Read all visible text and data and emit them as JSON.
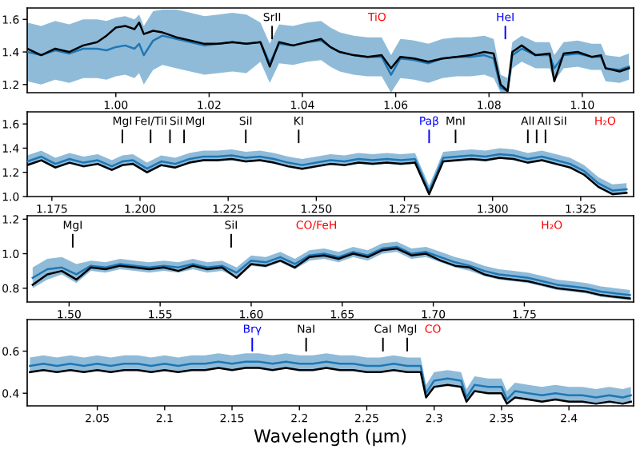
{
  "chart_data": [
    {
      "type": "line",
      "xlim": [
        0.981,
        1.111
      ],
      "ylim": [
        1.15,
        1.67
      ],
      "xticks": [
        {
          "value": 1.0,
          "label": "1.00"
        },
        {
          "value": 1.02,
          "label": "1.02"
        },
        {
          "value": 1.04,
          "label": "1.04"
        },
        {
          "value": 1.06,
          "label": "1.06"
        },
        {
          "value": 1.08,
          "label": "1.08"
        },
        {
          "value": 1.1,
          "label": "1.10"
        }
      ],
      "yticks": [
        1.2,
        1.4,
        1.6
      ],
      "x": [
        0.981,
        0.984,
        0.987,
        0.99,
        0.993,
        0.996,
        0.998,
        1.0,
        1.002,
        1.004,
        1.005,
        1.006,
        1.008,
        1.01,
        1.013,
        1.016,
        1.019,
        1.022,
        1.025,
        1.028,
        1.031,
        1.033,
        1.035,
        1.038,
        1.041,
        1.044,
        1.046,
        1.048,
        1.051,
        1.054,
        1.057,
        1.059,
        1.061,
        1.064,
        1.067,
        1.07,
        1.073,
        1.076,
        1.079,
        1.081,
        1.0825,
        1.084,
        1.085,
        1.087,
        1.09,
        1.093,
        1.094,
        1.096,
        1.099,
        1.102,
        1.104,
        1.105,
        1.108,
        1.11
      ],
      "series": [
        {
          "color": "#000000",
          "values": [
            1.42,
            1.38,
            1.42,
            1.4,
            1.44,
            1.46,
            1.5,
            1.55,
            1.56,
            1.54,
            1.58,
            1.51,
            1.53,
            1.52,
            1.49,
            1.47,
            1.45,
            1.45,
            1.46,
            1.45,
            1.46,
            1.31,
            1.46,
            1.44,
            1.46,
            1.48,
            1.43,
            1.4,
            1.38,
            1.37,
            1.38,
            1.3,
            1.37,
            1.36,
            1.34,
            1.36,
            1.37,
            1.38,
            1.4,
            1.39,
            1.2,
            1.16,
            1.4,
            1.44,
            1.38,
            1.39,
            1.22,
            1.39,
            1.4,
            1.37,
            1.38,
            1.3,
            1.28,
            1.3
          ]
        },
        {
          "color": "#1f77b4",
          "values": [
            1.4,
            1.38,
            1.41,
            1.39,
            1.42,
            1.42,
            1.41,
            1.43,
            1.44,
            1.42,
            1.45,
            1.38,
            1.47,
            1.5,
            1.48,
            1.46,
            1.44,
            1.45,
            1.46,
            1.45,
            1.46,
            1.33,
            1.45,
            1.44,
            1.46,
            1.47,
            1.43,
            1.4,
            1.38,
            1.37,
            1.37,
            1.26,
            1.36,
            1.35,
            1.33,
            1.36,
            1.37,
            1.37,
            1.38,
            1.36,
            1.18,
            1.16,
            1.38,
            1.42,
            1.38,
            1.38,
            1.3,
            1.38,
            1.39,
            1.37,
            1.37,
            1.3,
            1.29,
            1.31
          ],
          "lower": [
            1.22,
            1.2,
            1.23,
            1.21,
            1.24,
            1.24,
            1.23,
            1.25,
            1.26,
            1.24,
            1.27,
            1.2,
            1.29,
            1.32,
            1.3,
            1.28,
            1.26,
            1.27,
            1.28,
            1.27,
            1.34,
            1.21,
            1.33,
            1.32,
            1.34,
            1.35,
            1.31,
            1.28,
            1.26,
            1.25,
            1.25,
            1.15,
            1.24,
            1.23,
            1.21,
            1.24,
            1.25,
            1.25,
            1.26,
            1.24,
            1.15,
            1.15,
            1.3,
            1.34,
            1.3,
            1.3,
            1.22,
            1.3,
            1.31,
            1.29,
            1.29,
            1.22,
            1.21,
            1.23
          ],
          "upper": [
            1.58,
            1.56,
            1.59,
            1.57,
            1.6,
            1.6,
            1.59,
            1.61,
            1.62,
            1.6,
            1.63,
            1.56,
            1.65,
            1.66,
            1.66,
            1.64,
            1.62,
            1.63,
            1.64,
            1.63,
            1.58,
            1.45,
            1.57,
            1.56,
            1.58,
            1.59,
            1.55,
            1.52,
            1.5,
            1.49,
            1.49,
            1.38,
            1.48,
            1.47,
            1.45,
            1.48,
            1.49,
            1.49,
            1.5,
            1.48,
            1.26,
            1.24,
            1.46,
            1.5,
            1.46,
            1.46,
            1.38,
            1.46,
            1.47,
            1.45,
            1.45,
            1.38,
            1.37,
            1.39
          ]
        }
      ],
      "ref_lines": [
        {
          "axis": "x",
          "value": 1.0335,
          "label": "SrII",
          "color": "#000000",
          "line_style": "solid"
        },
        {
          "axis": "x",
          "value": 1.0835,
          "label": "HeI",
          "color": "#0000ff",
          "line_style": "solid"
        }
      ],
      "annotations": [
        "TiO"
      ]
    },
    {
      "type": "line",
      "xlim": [
        1.168,
        1.34
      ],
      "ylim": [
        1.0,
        1.7
      ],
      "xticks": [
        {
          "value": 1.175,
          "label": "1.175"
        },
        {
          "value": 1.2,
          "label": "1.200"
        },
        {
          "value": 1.225,
          "label": "1.225"
        },
        {
          "value": 1.25,
          "label": "1.250"
        },
        {
          "value": 1.275,
          "label": "1.275"
        },
        {
          "value": 1.3,
          "label": "1.300"
        },
        {
          "value": 1.325,
          "label": "1.325"
        }
      ],
      "yticks": [
        {
          "value": 1.0,
          "label": "1.0"
        },
        1.2,
        1.4,
        1.6
      ],
      "x": [
        1.168,
        1.172,
        1.176,
        1.18,
        1.184,
        1.188,
        1.192,
        1.195,
        1.198,
        1.202,
        1.206,
        1.21,
        1.214,
        1.218,
        1.222,
        1.226,
        1.23,
        1.234,
        1.238,
        1.242,
        1.246,
        1.25,
        1.254,
        1.258,
        1.262,
        1.266,
        1.27,
        1.274,
        1.278,
        1.282,
        1.286,
        1.29,
        1.294,
        1.298,
        1.302,
        1.306,
        1.31,
        1.314,
        1.318,
        1.322,
        1.326,
        1.33,
        1.334,
        1.338
      ],
      "series": [
        {
          "color": "#000000",
          "values": [
            1.26,
            1.3,
            1.24,
            1.28,
            1.25,
            1.27,
            1.22,
            1.26,
            1.27,
            1.2,
            1.26,
            1.24,
            1.28,
            1.3,
            1.3,
            1.31,
            1.29,
            1.3,
            1.28,
            1.25,
            1.23,
            1.25,
            1.27,
            1.26,
            1.28,
            1.27,
            1.28,
            1.27,
            1.28,
            1.02,
            1.29,
            1.3,
            1.31,
            1.3,
            1.32,
            1.31,
            1.28,
            1.3,
            1.27,
            1.24,
            1.18,
            1.08,
            1.02,
            1.03
          ]
        },
        {
          "color": "#1f77b4",
          "values": [
            1.29,
            1.33,
            1.27,
            1.31,
            1.28,
            1.3,
            1.25,
            1.29,
            1.3,
            1.23,
            1.29,
            1.27,
            1.31,
            1.33,
            1.33,
            1.34,
            1.32,
            1.33,
            1.31,
            1.28,
            1.26,
            1.28,
            1.3,
            1.29,
            1.31,
            1.3,
            1.31,
            1.3,
            1.31,
            1.04,
            1.32,
            1.33,
            1.34,
            1.33,
            1.35,
            1.34,
            1.31,
            1.33,
            1.3,
            1.27,
            1.21,
            1.11,
            1.05,
            1.06
          ],
          "lower": [
            1.25,
            1.29,
            1.23,
            1.27,
            1.24,
            1.26,
            1.21,
            1.25,
            1.26,
            1.19,
            1.25,
            1.23,
            1.27,
            1.29,
            1.29,
            1.3,
            1.28,
            1.29,
            1.27,
            1.24,
            1.22,
            1.24,
            1.26,
            1.25,
            1.27,
            1.26,
            1.27,
            1.26,
            1.27,
            1.0,
            1.28,
            1.29,
            1.3,
            1.29,
            1.31,
            1.3,
            1.27,
            1.29,
            1.26,
            1.23,
            1.17,
            1.07,
            1.01,
            1.02
          ],
          "upper": [
            1.34,
            1.38,
            1.32,
            1.36,
            1.33,
            1.35,
            1.3,
            1.34,
            1.35,
            1.28,
            1.34,
            1.32,
            1.36,
            1.38,
            1.38,
            1.39,
            1.37,
            1.38,
            1.36,
            1.33,
            1.31,
            1.33,
            1.35,
            1.34,
            1.36,
            1.35,
            1.36,
            1.35,
            1.36,
            1.09,
            1.37,
            1.38,
            1.39,
            1.38,
            1.4,
            1.39,
            1.36,
            1.38,
            1.35,
            1.32,
            1.26,
            1.16,
            1.1,
            1.11
          ]
        }
      ],
      "ref_lines": [
        {
          "axis": "x",
          "value": 1.195,
          "label": "MgI",
          "color": "#000000",
          "line_style": "solid"
        },
        {
          "axis": "x",
          "value": 1.203,
          "label": "FeI/TiI",
          "color": "#000000",
          "line_style": "solid"
        },
        {
          "axis": "x",
          "value": 1.2085,
          "label": "SiI",
          "color": "#000000",
          "line_style": "solid"
        },
        {
          "axis": "x",
          "value": 1.2125,
          "label": "MgI",
          "color": "#000000",
          "line_style": "solid"
        },
        {
          "axis": "x",
          "value": 1.23,
          "label": "SiI",
          "color": "#000000",
          "line_style": "solid"
        },
        {
          "axis": "x",
          "value": 1.245,
          "label": "KI",
          "color": "#000000",
          "line_style": "solid"
        },
        {
          "axis": "x",
          "value": 1.282,
          "label": "Paβ",
          "color": "#0000ff",
          "line_style": "solid"
        },
        {
          "axis": "x",
          "value": 1.2895,
          "label": "MnI",
          "color": "#000000",
          "line_style": "solid"
        },
        {
          "axis": "x",
          "value": 1.31,
          "label": "AlI",
          "color": "#000000",
          "line_style": "solid"
        },
        {
          "axis": "x",
          "value": 1.3125,
          "label": "AlI",
          "color": "#000000",
          "line_style": "solid"
        },
        {
          "axis": "x",
          "value": 1.315,
          "label": "SiI",
          "color": "#000000",
          "line_style": "solid"
        }
      ],
      "annotations": [
        "H₂O"
      ]
    },
    {
      "type": "line",
      "xlim": [
        1.477,
        1.81
      ],
      "ylim": [
        0.72,
        1.22
      ],
      "xticks": [
        {
          "value": 1.5,
          "label": "1.50"
        },
        {
          "value": 1.55,
          "label": "1.55"
        },
        {
          "value": 1.6,
          "label": "1.60"
        },
        {
          "value": 1.65,
          "label": "1.65"
        },
        {
          "value": 1.7,
          "label": "1.70"
        },
        {
          "value": 1.75,
          "label": "1.75"
        }
      ],
      "yticks": [
        0.8,
        {
          "value": 1.0,
          "label": "1.0"
        },
        1.2
      ],
      "x": [
        1.48,
        1.488,
        1.496,
        1.504,
        1.512,
        1.52,
        1.528,
        1.536,
        1.544,
        1.552,
        1.56,
        1.568,
        1.576,
        1.584,
        1.592,
        1.6,
        1.608,
        1.616,
        1.624,
        1.632,
        1.64,
        1.648,
        1.656,
        1.664,
        1.672,
        1.68,
        1.688,
        1.696,
        1.704,
        1.712,
        1.72,
        1.728,
        1.736,
        1.744,
        1.752,
        1.76,
        1.768,
        1.776,
        1.784,
        1.792,
        1.8,
        1.808
      ],
      "series": [
        {
          "color": "#000000",
          "values": [
            0.82,
            0.88,
            0.9,
            0.85,
            0.92,
            0.91,
            0.93,
            0.92,
            0.91,
            0.92,
            0.9,
            0.93,
            0.91,
            0.92,
            0.86,
            0.94,
            0.93,
            0.96,
            0.92,
            0.98,
            0.99,
            0.97,
            1.0,
            0.98,
            1.02,
            1.03,
            0.99,
            1.0,
            0.96,
            0.93,
            0.92,
            0.88,
            0.86,
            0.85,
            0.84,
            0.82,
            0.8,
            0.79,
            0.78,
            0.76,
            0.75,
            0.74
          ]
        },
        {
          "color": "#1f77b4",
          "values": [
            0.86,
            0.91,
            0.92,
            0.88,
            0.93,
            0.92,
            0.94,
            0.93,
            0.92,
            0.93,
            0.92,
            0.94,
            0.92,
            0.93,
            0.89,
            0.96,
            0.95,
            0.98,
            0.94,
            0.99,
            1.0,
            0.98,
            1.01,
            0.99,
            1.03,
            1.04,
            1.0,
            1.01,
            0.98,
            0.95,
            0.93,
            0.9,
            0.88,
            0.87,
            0.86,
            0.84,
            0.82,
            0.81,
            0.8,
            0.78,
            0.77,
            0.76
          ],
          "lower": [
            0.8,
            0.85,
            0.88,
            0.83,
            0.9,
            0.89,
            0.91,
            0.9,
            0.89,
            0.9,
            0.89,
            0.91,
            0.89,
            0.9,
            0.86,
            0.93,
            0.92,
            0.95,
            0.91,
            0.96,
            0.97,
            0.95,
            0.98,
            0.96,
            1.0,
            1.01,
            0.97,
            0.98,
            0.95,
            0.92,
            0.9,
            0.87,
            0.85,
            0.84,
            0.83,
            0.81,
            0.79,
            0.78,
            0.77,
            0.75,
            0.74,
            0.73
          ],
          "upper": [
            0.92,
            0.97,
            0.98,
            0.94,
            0.96,
            0.95,
            0.97,
            0.96,
            0.95,
            0.96,
            0.95,
            0.97,
            0.95,
            0.96,
            0.92,
            0.99,
            0.98,
            1.01,
            0.97,
            1.02,
            1.03,
            1.01,
            1.04,
            1.02,
            1.06,
            1.07,
            1.03,
            1.04,
            1.01,
            0.98,
            0.96,
            0.93,
            0.91,
            0.9,
            0.89,
            0.87,
            0.85,
            0.84,
            0.83,
            0.81,
            0.8,
            0.79
          ]
        }
      ],
      "ref_lines": [
        {
          "axis": "x",
          "value": 1.502,
          "label": "MgI",
          "color": "#000000",
          "line_style": "solid"
        },
        {
          "axis": "x",
          "value": 1.589,
          "label": "SiI",
          "color": "#000000",
          "line_style": "solid"
        }
      ],
      "annotations": [
        "CO/FeH",
        "H₂O"
      ]
    },
    {
      "type": "line",
      "xlim": [
        1.998,
        2.448
      ],
      "ylim": [
        0.34,
        0.75
      ],
      "xlabel": "Wavelength (μm)",
      "xticks": [
        2.05,
        2.1,
        2.15,
        2.2,
        2.25,
        2.3,
        2.35,
        2.4
      ],
      "yticks": [
        0.4,
        0.6
      ],
      "x": [
        2.0,
        2.01,
        2.02,
        2.03,
        2.04,
        2.05,
        2.06,
        2.07,
        2.08,
        2.09,
        2.1,
        2.11,
        2.12,
        2.13,
        2.14,
        2.15,
        2.16,
        2.17,
        2.18,
        2.19,
        2.2,
        2.21,
        2.22,
        2.23,
        2.24,
        2.25,
        2.26,
        2.27,
        2.28,
        2.29,
        2.294,
        2.3,
        2.31,
        2.32,
        2.324,
        2.33,
        2.34,
        2.35,
        2.354,
        2.36,
        2.37,
        2.38,
        2.39,
        2.4,
        2.41,
        2.42,
        2.43,
        2.44,
        2.446
      ],
      "series": [
        {
          "color": "#000000",
          "values": [
            0.5,
            0.51,
            0.5,
            0.51,
            0.5,
            0.51,
            0.5,
            0.51,
            0.51,
            0.5,
            0.51,
            0.5,
            0.51,
            0.51,
            0.52,
            0.51,
            0.52,
            0.52,
            0.51,
            0.52,
            0.51,
            0.51,
            0.52,
            0.51,
            0.51,
            0.5,
            0.5,
            0.51,
            0.5,
            0.5,
            0.38,
            0.43,
            0.44,
            0.43,
            0.36,
            0.41,
            0.4,
            0.4,
            0.35,
            0.38,
            0.37,
            0.36,
            0.37,
            0.36,
            0.36,
            0.35,
            0.36,
            0.35,
            0.36
          ]
        },
        {
          "color": "#1f77b4",
          "values": [
            0.53,
            0.54,
            0.53,
            0.54,
            0.53,
            0.54,
            0.53,
            0.54,
            0.54,
            0.53,
            0.54,
            0.53,
            0.54,
            0.54,
            0.55,
            0.54,
            0.55,
            0.55,
            0.54,
            0.55,
            0.54,
            0.54,
            0.55,
            0.54,
            0.54,
            0.53,
            0.53,
            0.54,
            0.53,
            0.53,
            0.4,
            0.46,
            0.47,
            0.46,
            0.38,
            0.44,
            0.43,
            0.43,
            0.37,
            0.41,
            0.4,
            0.39,
            0.4,
            0.39,
            0.39,
            0.38,
            0.39,
            0.38,
            0.39
          ],
          "lower": [
            0.5,
            0.51,
            0.5,
            0.51,
            0.5,
            0.51,
            0.5,
            0.51,
            0.51,
            0.5,
            0.51,
            0.5,
            0.51,
            0.51,
            0.52,
            0.51,
            0.52,
            0.52,
            0.51,
            0.52,
            0.51,
            0.51,
            0.52,
            0.51,
            0.51,
            0.5,
            0.5,
            0.51,
            0.5,
            0.5,
            0.38,
            0.43,
            0.44,
            0.43,
            0.36,
            0.41,
            0.4,
            0.4,
            0.35,
            0.38,
            0.37,
            0.36,
            0.37,
            0.36,
            0.36,
            0.35,
            0.36,
            0.35,
            0.36
          ],
          "upper": [
            0.57,
            0.58,
            0.57,
            0.58,
            0.57,
            0.58,
            0.57,
            0.58,
            0.58,
            0.57,
            0.58,
            0.57,
            0.58,
            0.58,
            0.59,
            0.58,
            0.59,
            0.59,
            0.58,
            0.59,
            0.58,
            0.58,
            0.59,
            0.58,
            0.58,
            0.57,
            0.57,
            0.58,
            0.57,
            0.57,
            0.44,
            0.5,
            0.51,
            0.5,
            0.42,
            0.48,
            0.47,
            0.47,
            0.41,
            0.45,
            0.44,
            0.43,
            0.44,
            0.43,
            0.43,
            0.42,
            0.43,
            0.42,
            0.43
          ]
        }
      ],
      "ref_lines": [
        {
          "axis": "x",
          "value": 2.165,
          "label": "Brγ",
          "color": "#0000ff",
          "line_style": "solid"
        },
        {
          "axis": "x",
          "value": 2.205,
          "label": "NaI",
          "color": "#000000",
          "line_style": "solid"
        },
        {
          "axis": "x",
          "value": 2.262,
          "label": "CaI",
          "color": "#000000",
          "line_style": "solid"
        },
        {
          "axis": "x",
          "value": 2.28,
          "label": "MgI",
          "color": "#000000",
          "line_style": "solid"
        }
      ],
      "annotations": [
        "CO"
      ]
    }
  ]
}
